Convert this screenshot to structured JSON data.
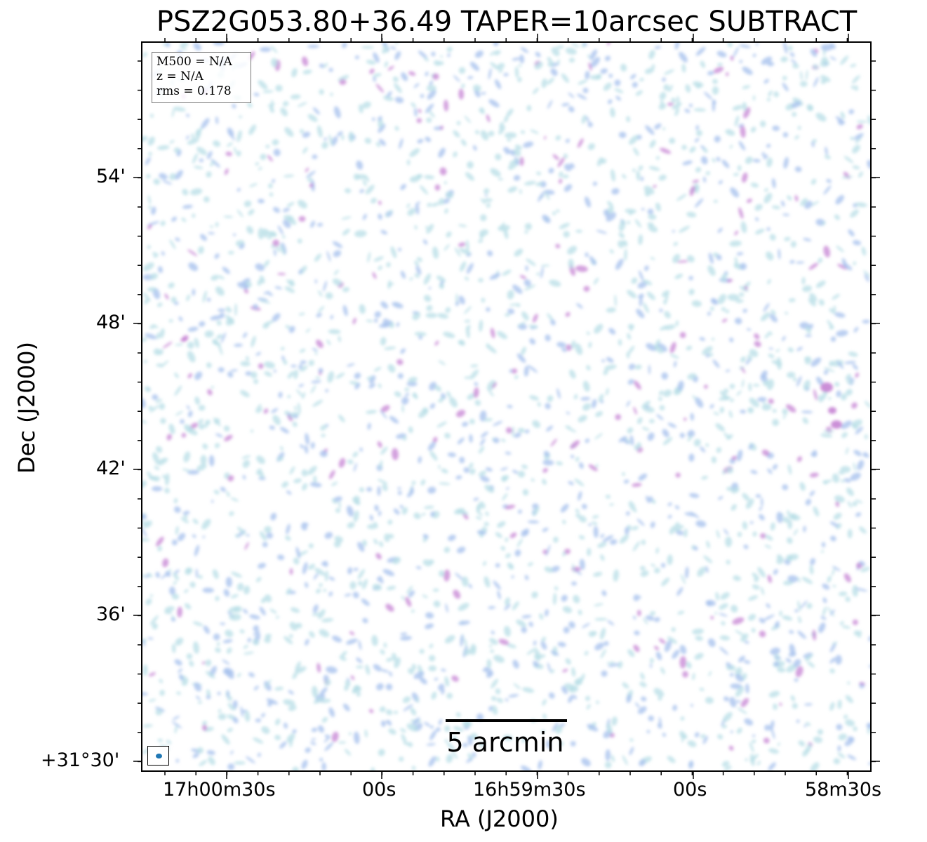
{
  "title": "PSZ2G053.80+36.49 TAPER=10arcsec SUBTRACT",
  "xlabel": "RA (J2000)",
  "ylabel": "Dec (J2000)",
  "x_ticks": [
    "17h00m30s",
    "00s",
    "16h59m30s",
    "00s",
    "58m30s"
  ],
  "y_ticks": [
    "54'",
    "48'",
    "42'",
    "36'",
    "+31°30'"
  ],
  "info": {
    "m500": "M500 = N/A",
    "z": "z = N/A",
    "rms": "rms = 0.178"
  },
  "scalebar": {
    "label": "5 arcmin"
  },
  "colors": {
    "faint_noise": "#b7dde6",
    "mid_noise": "#a9c3ee",
    "bright_noise": "#c27bd0",
    "beam": "#1f77b4"
  },
  "image_description_labels": {
    "beam_icon": "beam-ellipse-icon"
  }
}
